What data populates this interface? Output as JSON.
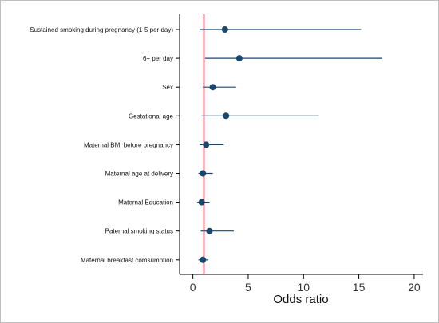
{
  "chart_data": {
    "type": "scatter",
    "subtype": "forest-plot",
    "title": "",
    "xlabel": "Odds ratio",
    "ylabel": "",
    "xlim": [
      -1.2,
      20.8
    ],
    "xticks": [
      0,
      5,
      10,
      15,
      20
    ],
    "reference_line": 1,
    "grid": false,
    "colors": {
      "point": "#1a476f",
      "ci_line": "#1a476f",
      "reference_line": "#c4283c",
      "axis": "#000000",
      "frame_border": "#bfbfbf"
    },
    "items": [
      {
        "label": "Sustained smoking during pregnancy (1-5 per day)",
        "estimate": 2.9,
        "ci_low": 0.6,
        "ci_high": 15.2
      },
      {
        "label": "6+ per day",
        "estimate": 4.2,
        "ci_low": 1.1,
        "ci_high": 17.1
      },
      {
        "label": "Sex",
        "estimate": 1.8,
        "ci_low": 0.9,
        "ci_high": 3.9
      },
      {
        "label": "Gestational age",
        "estimate": 3.0,
        "ci_low": 0.8,
        "ci_high": 11.4
      },
      {
        "label": "Maternal BMI before pregnancy",
        "estimate": 1.2,
        "ci_low": 0.6,
        "ci_high": 2.8
      },
      {
        "label": "Maternal age at delivery",
        "estimate": 0.9,
        "ci_low": 0.5,
        "ci_high": 1.8
      },
      {
        "label": "Maternal Education",
        "estimate": 0.8,
        "ci_low": 0.4,
        "ci_high": 1.5
      },
      {
        "label": "Paternal smoking status",
        "estimate": 1.5,
        "ci_low": 0.7,
        "ci_high": 3.7
      },
      {
        "label": "Maternal breakfast comsumption",
        "estimate": 0.9,
        "ci_low": 0.5,
        "ci_high": 1.4
      }
    ]
  }
}
